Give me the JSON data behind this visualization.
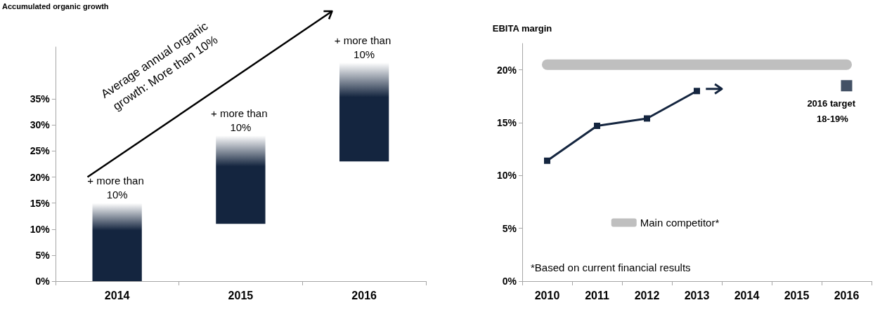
{
  "chart_data": [
    {
      "type": "bar",
      "ylabel": "Accumulated organic growth",
      "categories": [
        "2014",
        "2015",
        "2016"
      ],
      "values": [
        15,
        17,
        19
      ],
      "base": [
        0,
        11,
        23
      ],
      "color": "#14253f",
      "ylim": [
        0,
        45
      ],
      "yticks": [
        {
          "value": 0,
          "label": "0%"
        },
        {
          "value": 5,
          "label": "5%"
        },
        {
          "value": 10,
          "label": "10%"
        },
        {
          "value": 15,
          "label": "15%"
        },
        {
          "value": 20,
          "label": "20%"
        },
        {
          "value": 25,
          "label": "25%"
        },
        {
          "value": 30,
          "label": "30%"
        },
        {
          "value": 35,
          "label": "35%"
        }
      ],
      "annotations": [
        {
          "text": "+ more than 10%",
          "x": "2014",
          "y": 15
        },
        {
          "text": "+ more than 10%",
          "x": "2015",
          "y": 28
        },
        {
          "text": "+ more than 10%",
          "x": "2016",
          "y": 42
        },
        "Average annual organic growth: More than 10%"
      ]
    },
    {
      "type": "line",
      "ylabel": "EBITA margin",
      "categories": [
        "2010",
        "2011",
        "2012",
        "2013",
        "2014",
        "2015",
        "2016"
      ],
      "ylim": [
        0,
        22.5
      ],
      "yticks": [
        {
          "value": 0,
          "label": "0%"
        },
        {
          "value": 5,
          "label": "5%"
        },
        {
          "value": 10,
          "label": "10%"
        },
        {
          "value": 15,
          "label": "15%"
        },
        {
          "value": 20,
          "label": "20%"
        }
      ],
      "marker": "square",
      "legend": "bottom",
      "series": [
        {
          "name": "Main competitor*",
          "color": "#bfbfbf",
          "marker": "none",
          "values": [
            20.5,
            20.5,
            20.5,
            20.5,
            20.5,
            20.5,
            20.5
          ]
        },
        {
          "color": "#14253f",
          "values": [
            11.4,
            14.7,
            15.4,
            18.0,
            null,
            null,
            null
          ]
        },
        {
          "type": "scatter",
          "color": "#14253f",
          "values": [
            null,
            null,
            null,
            null,
            null,
            null,
            18.5
          ]
        }
      ],
      "annotations": [
        {
          "text": "2016 target 18-19%",
          "x": "2016",
          "y": 18.5
        },
        "*Based on current financial results"
      ]
    }
  ]
}
